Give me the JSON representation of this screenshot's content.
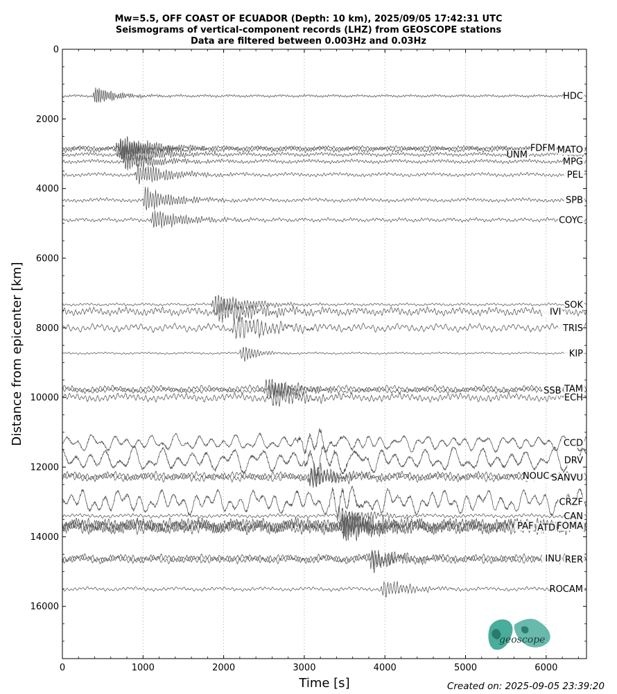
{
  "chart_data": {
    "type": "line",
    "title_lines": [
      "Mw=5.5, OFF COAST OF ECUADOR (Depth: 10 km), 2025/09/05 17:42:31 UTC",
      "Seismograms of vertical-component records (LHZ) from GEOSCOPE stations",
      "Data are filtered between 0.003Hz and 0.03Hz"
    ],
    "xlabel": "Time [s]",
    "ylabel": "Distance from epicenter [km]",
    "xlim": [
      0,
      6500
    ],
    "ylim": [
      17500,
      0
    ],
    "x_ticks": [
      0,
      1000,
      2000,
      3000,
      4000,
      5000,
      6000
    ],
    "y_ticks": [
      0,
      2000,
      4000,
      6000,
      8000,
      10000,
      12000,
      14000,
      16000
    ],
    "x_grid": true,
    "series_color": "#555555",
    "traces": [
      {
        "name": "HDC",
        "distance": 1340,
        "arrival": 380,
        "duration": 600,
        "burst_amp": 0.8,
        "bg_amp": 0.1,
        "period": 30
      },
      {
        "name": "MATO",
        "distance": 2880,
        "arrival": 650,
        "duration": 900,
        "burst_amp": 0.9,
        "bg_amp": 0.2,
        "period": 35
      },
      {
        "name": "FDFM",
        "distance": 2830,
        "arrival": 700,
        "duration": 900,
        "burst_amp": 1.1,
        "bg_amp": 0.15,
        "period": 35
      },
      {
        "name": "UNM",
        "distance": 3020,
        "arrival": 720,
        "duration": 900,
        "burst_amp": 1.0,
        "bg_amp": 0.15,
        "period": 35
      },
      {
        "name": "MPG",
        "distance": 3220,
        "arrival": 750,
        "duration": 900,
        "burst_amp": 0.8,
        "bg_amp": 0.15,
        "period": 35
      },
      {
        "name": "PEL",
        "distance": 3600,
        "arrival": 900,
        "duration": 900,
        "burst_amp": 1.0,
        "bg_amp": 0.15,
        "period": 40
      },
      {
        "name": "SPB",
        "distance": 4330,
        "arrival": 1000,
        "duration": 800,
        "burst_amp": 1.1,
        "bg_amp": 0.15,
        "period": 40
      },
      {
        "name": "COYC",
        "distance": 4900,
        "arrival": 1100,
        "duration": 900,
        "burst_amp": 0.9,
        "bg_amp": 0.15,
        "period": 40
      },
      {
        "name": "SOK",
        "distance": 7330,
        "arrival": 1850,
        "duration": 900,
        "burst_amp": 1.0,
        "bg_amp": 0.1,
        "period": 45
      },
      {
        "name": "IVI",
        "distance": 7530,
        "arrival": 1900,
        "duration": 1100,
        "burst_amp": 1.0,
        "bg_amp": 0.3,
        "period": 45
      },
      {
        "name": "TRIS",
        "distance": 8000,
        "arrival": 2100,
        "duration": 1100,
        "burst_amp": 1.1,
        "bg_amp": 0.3,
        "period": 60
      },
      {
        "name": "KIP",
        "distance": 8730,
        "arrival": 2200,
        "duration": 400,
        "burst_amp": 0.9,
        "bg_amp": 0.08,
        "period": 45
      },
      {
        "name": "TAM",
        "distance": 9750,
        "arrival": 2500,
        "duration": 700,
        "burst_amp": 0.9,
        "bg_amp": 0.25,
        "period": 50
      },
      {
        "name": "SSB",
        "distance": 9800,
        "arrival": 2550,
        "duration": 700,
        "burst_amp": 1.0,
        "bg_amp": 0.2,
        "period": 50
      },
      {
        "name": "ECH",
        "distance": 10000,
        "arrival": 2600,
        "duration": 700,
        "burst_amp": 1.0,
        "bg_amp": 0.3,
        "period": 50
      },
      {
        "name": "CCD",
        "distance": 11300,
        "arrival": 2900,
        "duration": 1100,
        "burst_amp": 0.9,
        "bg_amp": 0.6,
        "period": 150
      },
      {
        "name": "DRV",
        "distance": 11800,
        "arrival": 3000,
        "duration": 1100,
        "burst_amp": 1.0,
        "bg_amp": 0.9,
        "period": 180
      },
      {
        "name": "SANVU",
        "distance": 12300,
        "arrival": 3050,
        "duration": 700,
        "burst_amp": 1.0,
        "bg_amp": 0.3,
        "period": 50
      },
      {
        "name": "NOUC",
        "distance": 12250,
        "arrival": 3050,
        "duration": 700,
        "burst_amp": 1.1,
        "bg_amp": 0.3,
        "period": 50
      },
      {
        "name": "CRZF",
        "distance": 13000,
        "arrival": 3300,
        "duration": 900,
        "burst_amp": 1.0,
        "bg_amp": 0.9,
        "period": 140
      },
      {
        "name": "CAN",
        "distance": 13400,
        "arrival": 3400,
        "duration": 700,
        "burst_amp": 0.9,
        "bg_amp": 0.15,
        "period": 50
      },
      {
        "name": "FOMA",
        "distance": 13680,
        "arrival": 3450,
        "duration": 900,
        "burst_amp": 1.0,
        "bg_amp": 0.5,
        "period": 40
      },
      {
        "name": "ATD",
        "distance": 13730,
        "arrival": 3450,
        "duration": 900,
        "burst_amp": 1.1,
        "bg_amp": 0.5,
        "period": 40
      },
      {
        "name": "PAF",
        "distance": 13680,
        "arrival": 3480,
        "duration": 900,
        "burst_amp": 1.1,
        "bg_amp": 0.5,
        "period": 40
      },
      {
        "name": "RER",
        "distance": 14650,
        "arrival": 3800,
        "duration": 700,
        "burst_amp": 1.0,
        "bg_amp": 0.3,
        "period": 50
      },
      {
        "name": "INU",
        "distance": 14620,
        "arrival": 3820,
        "duration": 700,
        "burst_amp": 0.9,
        "bg_amp": 0.3,
        "period": 50
      },
      {
        "name": "ROCAM",
        "distance": 15500,
        "arrival": 3950,
        "duration": 700,
        "burst_amp": 0.9,
        "bg_amp": 0.15,
        "period": 50
      }
    ]
  },
  "logo": {
    "text": "geoscope",
    "color": "#2a9d8a"
  },
  "footer": {
    "created_label": "Created on: 2025-09-05 23:39:20"
  }
}
